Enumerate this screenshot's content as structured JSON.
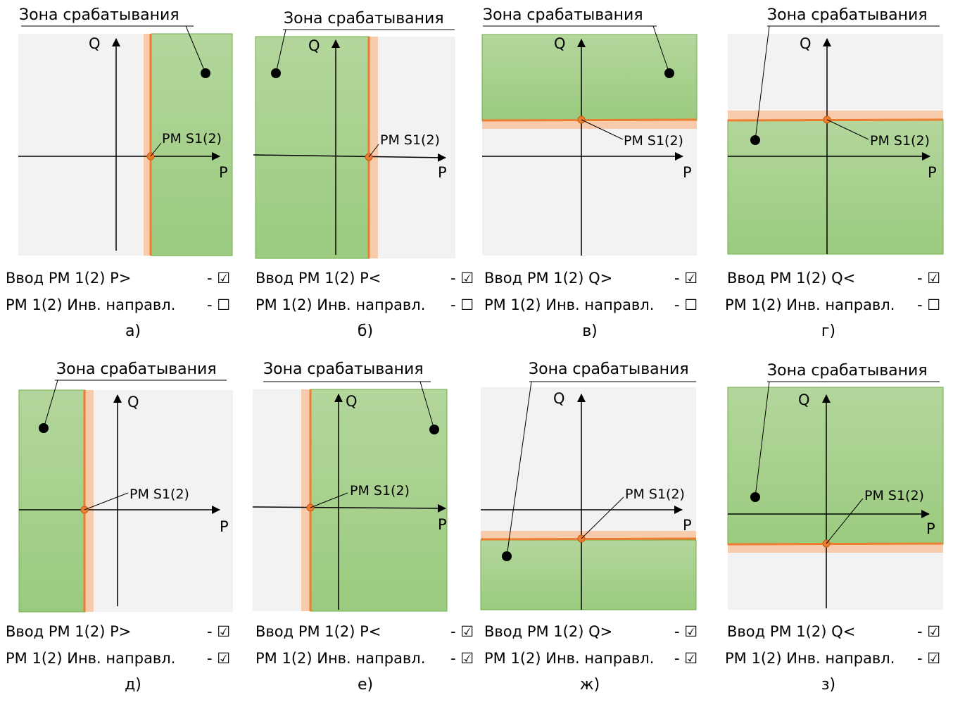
{
  "zone_label": "Зона срабатывания",
  "point_label": "PM S1(2)",
  "axis_p": "P",
  "axis_q": "Q",
  "check_on": "☑",
  "check_off": "☐",
  "colors": {
    "zone_fill": "#a7d08c",
    "zone_stroke": "#70ad47",
    "bg": "#f2f2f2",
    "boundary": "#ed7d31",
    "hysteresis": "#f8cbad"
  },
  "panels": [
    {
      "letter": "а)",
      "line1": "Ввод PM 1(2) P>",
      "line2": "PM 1(2) Инв. направл.",
      "check1": "☑",
      "check2": "☐"
    },
    {
      "letter": "б)",
      "line1": "Ввод PM 1(2) P<",
      "line2": "PM 1(2) Инв. направл.",
      "check1": "☑",
      "check2": "☐"
    },
    {
      "letter": "в)",
      "line1": "Ввод PM 1(2) Q>",
      "line2": "PM 1(2) Инв. направл.",
      "check1": "☑",
      "check2": "☐"
    },
    {
      "letter": "г)",
      "line1": "Ввод PM 1(2) Q<",
      "line2": "PM 1(2) Инв. направл.",
      "check1": "☑",
      "check2": "☐"
    },
    {
      "letter": "д)",
      "line1": "Ввод PM 1(2) P>",
      "line2": "PM 1(2) Инв. направл.",
      "check1": "☑",
      "check2": "☑"
    },
    {
      "letter": "е)",
      "line1": "Ввод PM 1(2) P<",
      "line2": "PM 1(2) Инв. направл.",
      "check1": "☑",
      "check2": "☑"
    },
    {
      "letter": "ж)",
      "line1": "Ввод PM 1(2) Q>",
      "line2": "PM 1(2) Инв. направл.",
      "check1": "☑",
      "check2": "☑"
    },
    {
      "letter": "з)",
      "line1": "Ввод PM 1(2) Q<",
      "line2": "PM 1(2) Инв. направл.",
      "check1": "☑",
      "check2": "☑"
    }
  ]
}
